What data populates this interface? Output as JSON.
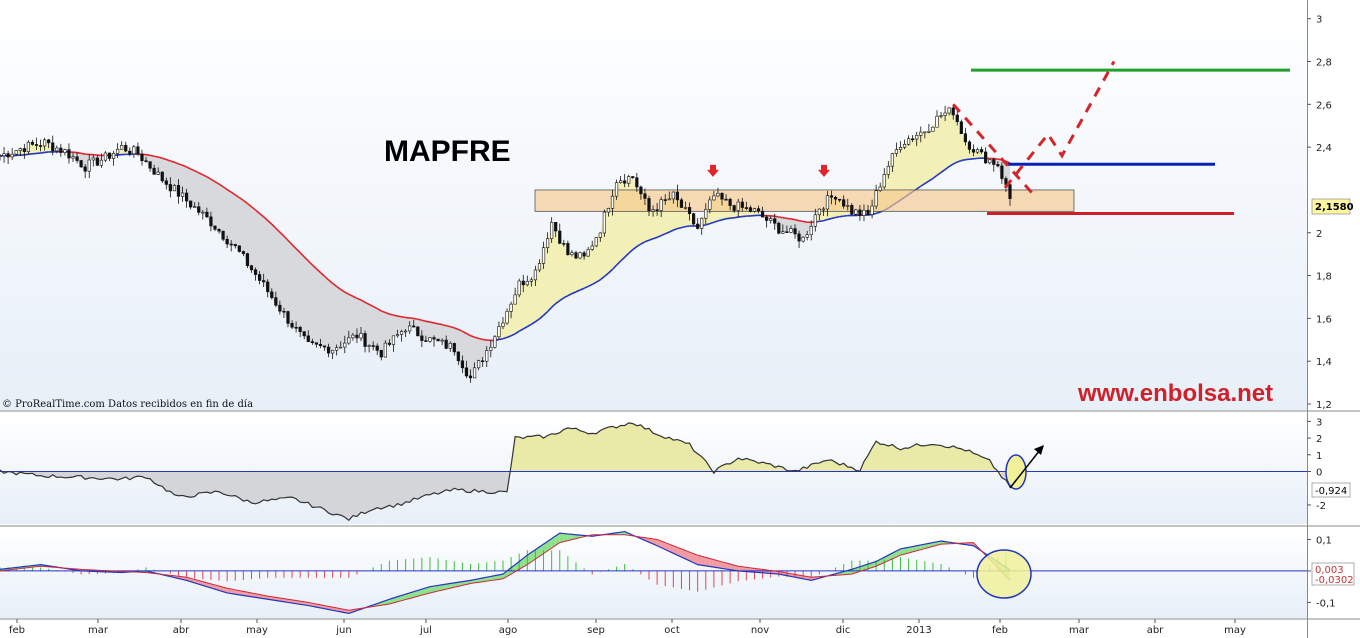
{
  "chart_data": [
    {
      "type": "candlestick",
      "title": "MAPFRE",
      "watermark": "www.enbolsa.net",
      "source_credit": "© ProRealTime.com  Datos recibidos en fin de día",
      "ylim": [
        1.2,
        3.05
      ],
      "yticks": [
        {
          "value": 3.0,
          "label": "3"
        },
        {
          "value": 2.8,
          "label": "2,8"
        },
        {
          "value": 2.6,
          "label": "2,6"
        },
        {
          "value": 2.4,
          "label": "2,4"
        },
        {
          "value": 2.0,
          "label": "2"
        },
        {
          "value": 1.8,
          "label": "1,8"
        },
        {
          "value": 1.6,
          "label": "1,6"
        },
        {
          "value": 1.4,
          "label": "1,4"
        },
        {
          "value": 1.2,
          "label": "1,2"
        }
      ],
      "last_price": "2,1580",
      "x_months": [
        "feb",
        "mar",
        "abr",
        "may",
        "jun",
        "jul",
        "ago",
        "sep",
        "oct",
        "nov",
        "dic",
        "2013",
        "feb",
        "mar",
        "abr",
        "may"
      ],
      "price_anchors": [
        {
          "t": 0,
          "v": 2.36
        },
        {
          "t": 6,
          "v": 2.4
        },
        {
          "t": 11,
          "v": 2.42
        },
        {
          "t": 16,
          "v": 2.38
        },
        {
          "t": 21,
          "v": 2.31
        },
        {
          "t": 26,
          "v": 2.35
        },
        {
          "t": 30,
          "v": 2.4
        },
        {
          "t": 34,
          "v": 2.37
        },
        {
          "t": 40,
          "v": 2.25
        },
        {
          "t": 46,
          "v": 2.15
        },
        {
          "t": 52,
          "v": 2.05
        },
        {
          "t": 58,
          "v": 1.93
        },
        {
          "t": 64,
          "v": 1.78
        },
        {
          "t": 70,
          "v": 1.62
        },
        {
          "t": 76,
          "v": 1.47
        },
        {
          "t": 82,
          "v": 1.46
        },
        {
          "t": 88,
          "v": 1.52
        },
        {
          "t": 94,
          "v": 1.44
        },
        {
          "t": 100,
          "v": 1.56
        },
        {
          "t": 106,
          "v": 1.5
        },
        {
          "t": 112,
          "v": 1.46
        },
        {
          "t": 116,
          "v": 1.32
        },
        {
          "t": 120,
          "v": 1.45
        },
        {
          "t": 124,
          "v": 1.6
        },
        {
          "t": 128,
          "v": 1.76
        },
        {
          "t": 132,
          "v": 1.82
        },
        {
          "t": 136,
          "v": 2.05
        },
        {
          "t": 140,
          "v": 1.9
        },
        {
          "t": 144,
          "v": 1.88
        },
        {
          "t": 148,
          "v": 2.02
        },
        {
          "t": 152,
          "v": 2.25
        },
        {
          "t": 156,
          "v": 2.26
        },
        {
          "t": 160,
          "v": 2.1
        },
        {
          "t": 166,
          "v": 2.17
        },
        {
          "t": 172,
          "v": 2.02
        },
        {
          "t": 176,
          "v": 2.17
        },
        {
          "t": 180,
          "v": 2.13
        },
        {
          "t": 186,
          "v": 2.1
        },
        {
          "t": 192,
          "v": 2.02
        },
        {
          "t": 198,
          "v": 1.97
        },
        {
          "t": 202,
          "v": 2.12
        },
        {
          "t": 206,
          "v": 2.18
        },
        {
          "t": 210,
          "v": 2.1
        },
        {
          "t": 214,
          "v": 2.08
        },
        {
          "t": 218,
          "v": 2.28
        },
        {
          "t": 222,
          "v": 2.42
        },
        {
          "t": 228,
          "v": 2.48
        },
        {
          "t": 232,
          "v": 2.55
        },
        {
          "t": 235,
          "v": 2.57
        },
        {
          "t": 238,
          "v": 2.43
        },
        {
          "t": 242,
          "v": 2.36
        },
        {
          "t": 246,
          "v": 2.32
        },
        {
          "t": 249,
          "v": 2.16
        }
      ],
      "resistance_zone": {
        "low": 2.1,
        "high": 2.2
      },
      "lines": [
        {
          "name": "green",
          "color": "#22a02a",
          "value": 2.76
        },
        {
          "name": "blue",
          "color": "#0b20b8",
          "value": 2.32
        },
        {
          "name": "red",
          "color": "#d01e28",
          "value": 2.09
        }
      ],
      "projection_path": [
        [
          249,
          2.2
        ],
        [
          257,
          2.46
        ],
        [
          263,
          2.36
        ],
        [
          275,
          2.8
        ]
      ],
      "downtrend": [
        [
          235,
          2.6
        ],
        [
          258,
          2.16
        ]
      ],
      "arrow_marks": [
        180,
        206
      ]
    },
    {
      "type": "line",
      "panel": "oscillator",
      "ylim": [
        -2.9,
        3.2
      ],
      "yticks": [
        {
          "value": 3,
          "label": "3"
        },
        {
          "value": 2,
          "label": "2"
        },
        {
          "value": 1,
          "label": "1"
        },
        {
          "value": 0,
          "label": "0"
        },
        {
          "value": -2,
          "label": "-2"
        }
      ],
      "last_value": "-0,924",
      "anchors": [
        {
          "t": 0,
          "v": 0.0
        },
        {
          "t": 10,
          "v": -0.25
        },
        {
          "t": 20,
          "v": -0.35
        },
        {
          "t": 30,
          "v": -0.45
        },
        {
          "t": 36,
          "v": -0.3
        },
        {
          "t": 44,
          "v": -1.55
        },
        {
          "t": 54,
          "v": -1.2
        },
        {
          "t": 62,
          "v": -1.85
        },
        {
          "t": 72,
          "v": -1.6
        },
        {
          "t": 80,
          "v": -2.3
        },
        {
          "t": 86,
          "v": -2.85
        },
        {
          "t": 92,
          "v": -2.2
        },
        {
          "t": 98,
          "v": -2.0
        },
        {
          "t": 106,
          "v": -1.4
        },
        {
          "t": 112,
          "v": -1.1
        },
        {
          "t": 120,
          "v": -1.2
        },
        {
          "t": 125,
          "v": -1.25
        },
        {
          "t": 127,
          "v": 2.0
        },
        {
          "t": 135,
          "v": 2.1
        },
        {
          "t": 140,
          "v": 2.6
        },
        {
          "t": 146,
          "v": 2.3
        },
        {
          "t": 152,
          "v": 2.7
        },
        {
          "t": 156,
          "v": 2.95
        },
        {
          "t": 162,
          "v": 2.25
        },
        {
          "t": 170,
          "v": 1.6
        },
        {
          "t": 176,
          "v": 0.0
        },
        {
          "t": 182,
          "v": 0.8
        },
        {
          "t": 190,
          "v": 0.4
        },
        {
          "t": 196,
          "v": 0.0
        },
        {
          "t": 204,
          "v": 0.7
        },
        {
          "t": 212,
          "v": 0.1
        },
        {
          "t": 216,
          "v": 1.8
        },
        {
          "t": 222,
          "v": 1.4
        },
        {
          "t": 230,
          "v": 1.7
        },
        {
          "t": 238,
          "v": 1.3
        },
        {
          "t": 244,
          "v": 0.6
        },
        {
          "t": 249,
          "v": -0.92
        }
      ]
    },
    {
      "type": "macd",
      "panel": "macd",
      "ylim": [
        -0.14,
        0.13
      ],
      "yticks": [
        {
          "value": 0.1,
          "label": "0,1"
        },
        {
          "value": 0,
          "label": "0"
        },
        {
          "value": -0.1,
          "label": "-0,1"
        }
      ],
      "last_values": [
        "0,003",
        "-0,0302"
      ],
      "macd_anchors": [
        {
          "t": 0,
          "v": 0.005
        },
        {
          "t": 10,
          "v": 0.02
        },
        {
          "t": 20,
          "v": 0.0
        },
        {
          "t": 30,
          "v": -0.005
        },
        {
          "t": 36,
          "v": 0.0
        },
        {
          "t": 46,
          "v": -0.03
        },
        {
          "t": 56,
          "v": -0.07
        },
        {
          "t": 66,
          "v": -0.09
        },
        {
          "t": 76,
          "v": -0.11
        },
        {
          "t": 86,
          "v": -0.135
        },
        {
          "t": 96,
          "v": -0.09
        },
        {
          "t": 106,
          "v": -0.05
        },
        {
          "t": 116,
          "v": -0.03
        },
        {
          "t": 124,
          "v": -0.01
        },
        {
          "t": 130,
          "v": 0.05
        },
        {
          "t": 138,
          "v": 0.12
        },
        {
          "t": 146,
          "v": 0.11
        },
        {
          "t": 154,
          "v": 0.125
        },
        {
          "t": 162,
          "v": 0.08
        },
        {
          "t": 172,
          "v": 0.02
        },
        {
          "t": 182,
          "v": 0.0
        },
        {
          "t": 192,
          "v": -0.01
        },
        {
          "t": 200,
          "v": -0.03
        },
        {
          "t": 210,
          "v": 0.005
        },
        {
          "t": 216,
          "v": 0.03
        },
        {
          "t": 222,
          "v": 0.07
        },
        {
          "t": 232,
          "v": 0.095
        },
        {
          "t": 240,
          "v": 0.08
        },
        {
          "t": 249,
          "v": 0.003
        }
      ],
      "signal_anchors": [
        {
          "t": 0,
          "v": 0.0
        },
        {
          "t": 10,
          "v": 0.015
        },
        {
          "t": 20,
          "v": 0.005
        },
        {
          "t": 30,
          "v": -0.002
        },
        {
          "t": 36,
          "v": -0.005
        },
        {
          "t": 46,
          "v": -0.02
        },
        {
          "t": 56,
          "v": -0.055
        },
        {
          "t": 66,
          "v": -0.08
        },
        {
          "t": 76,
          "v": -0.1
        },
        {
          "t": 86,
          "v": -0.125
        },
        {
          "t": 96,
          "v": -0.105
        },
        {
          "t": 106,
          "v": -0.07
        },
        {
          "t": 116,
          "v": -0.04
        },
        {
          "t": 124,
          "v": -0.025
        },
        {
          "t": 130,
          "v": 0.02
        },
        {
          "t": 138,
          "v": 0.09
        },
        {
          "t": 146,
          "v": 0.115
        },
        {
          "t": 154,
          "v": 0.115
        },
        {
          "t": 162,
          "v": 0.1
        },
        {
          "t": 172,
          "v": 0.05
        },
        {
          "t": 182,
          "v": 0.015
        },
        {
          "t": 192,
          "v": -0.002
        },
        {
          "t": 200,
          "v": -0.02
        },
        {
          "t": 210,
          "v": -0.01
        },
        {
          "t": 216,
          "v": 0.015
        },
        {
          "t": 222,
          "v": 0.05
        },
        {
          "t": 232,
          "v": 0.085
        },
        {
          "t": 240,
          "v": 0.09
        },
        {
          "t": 249,
          "v": -0.03
        }
      ]
    }
  ]
}
